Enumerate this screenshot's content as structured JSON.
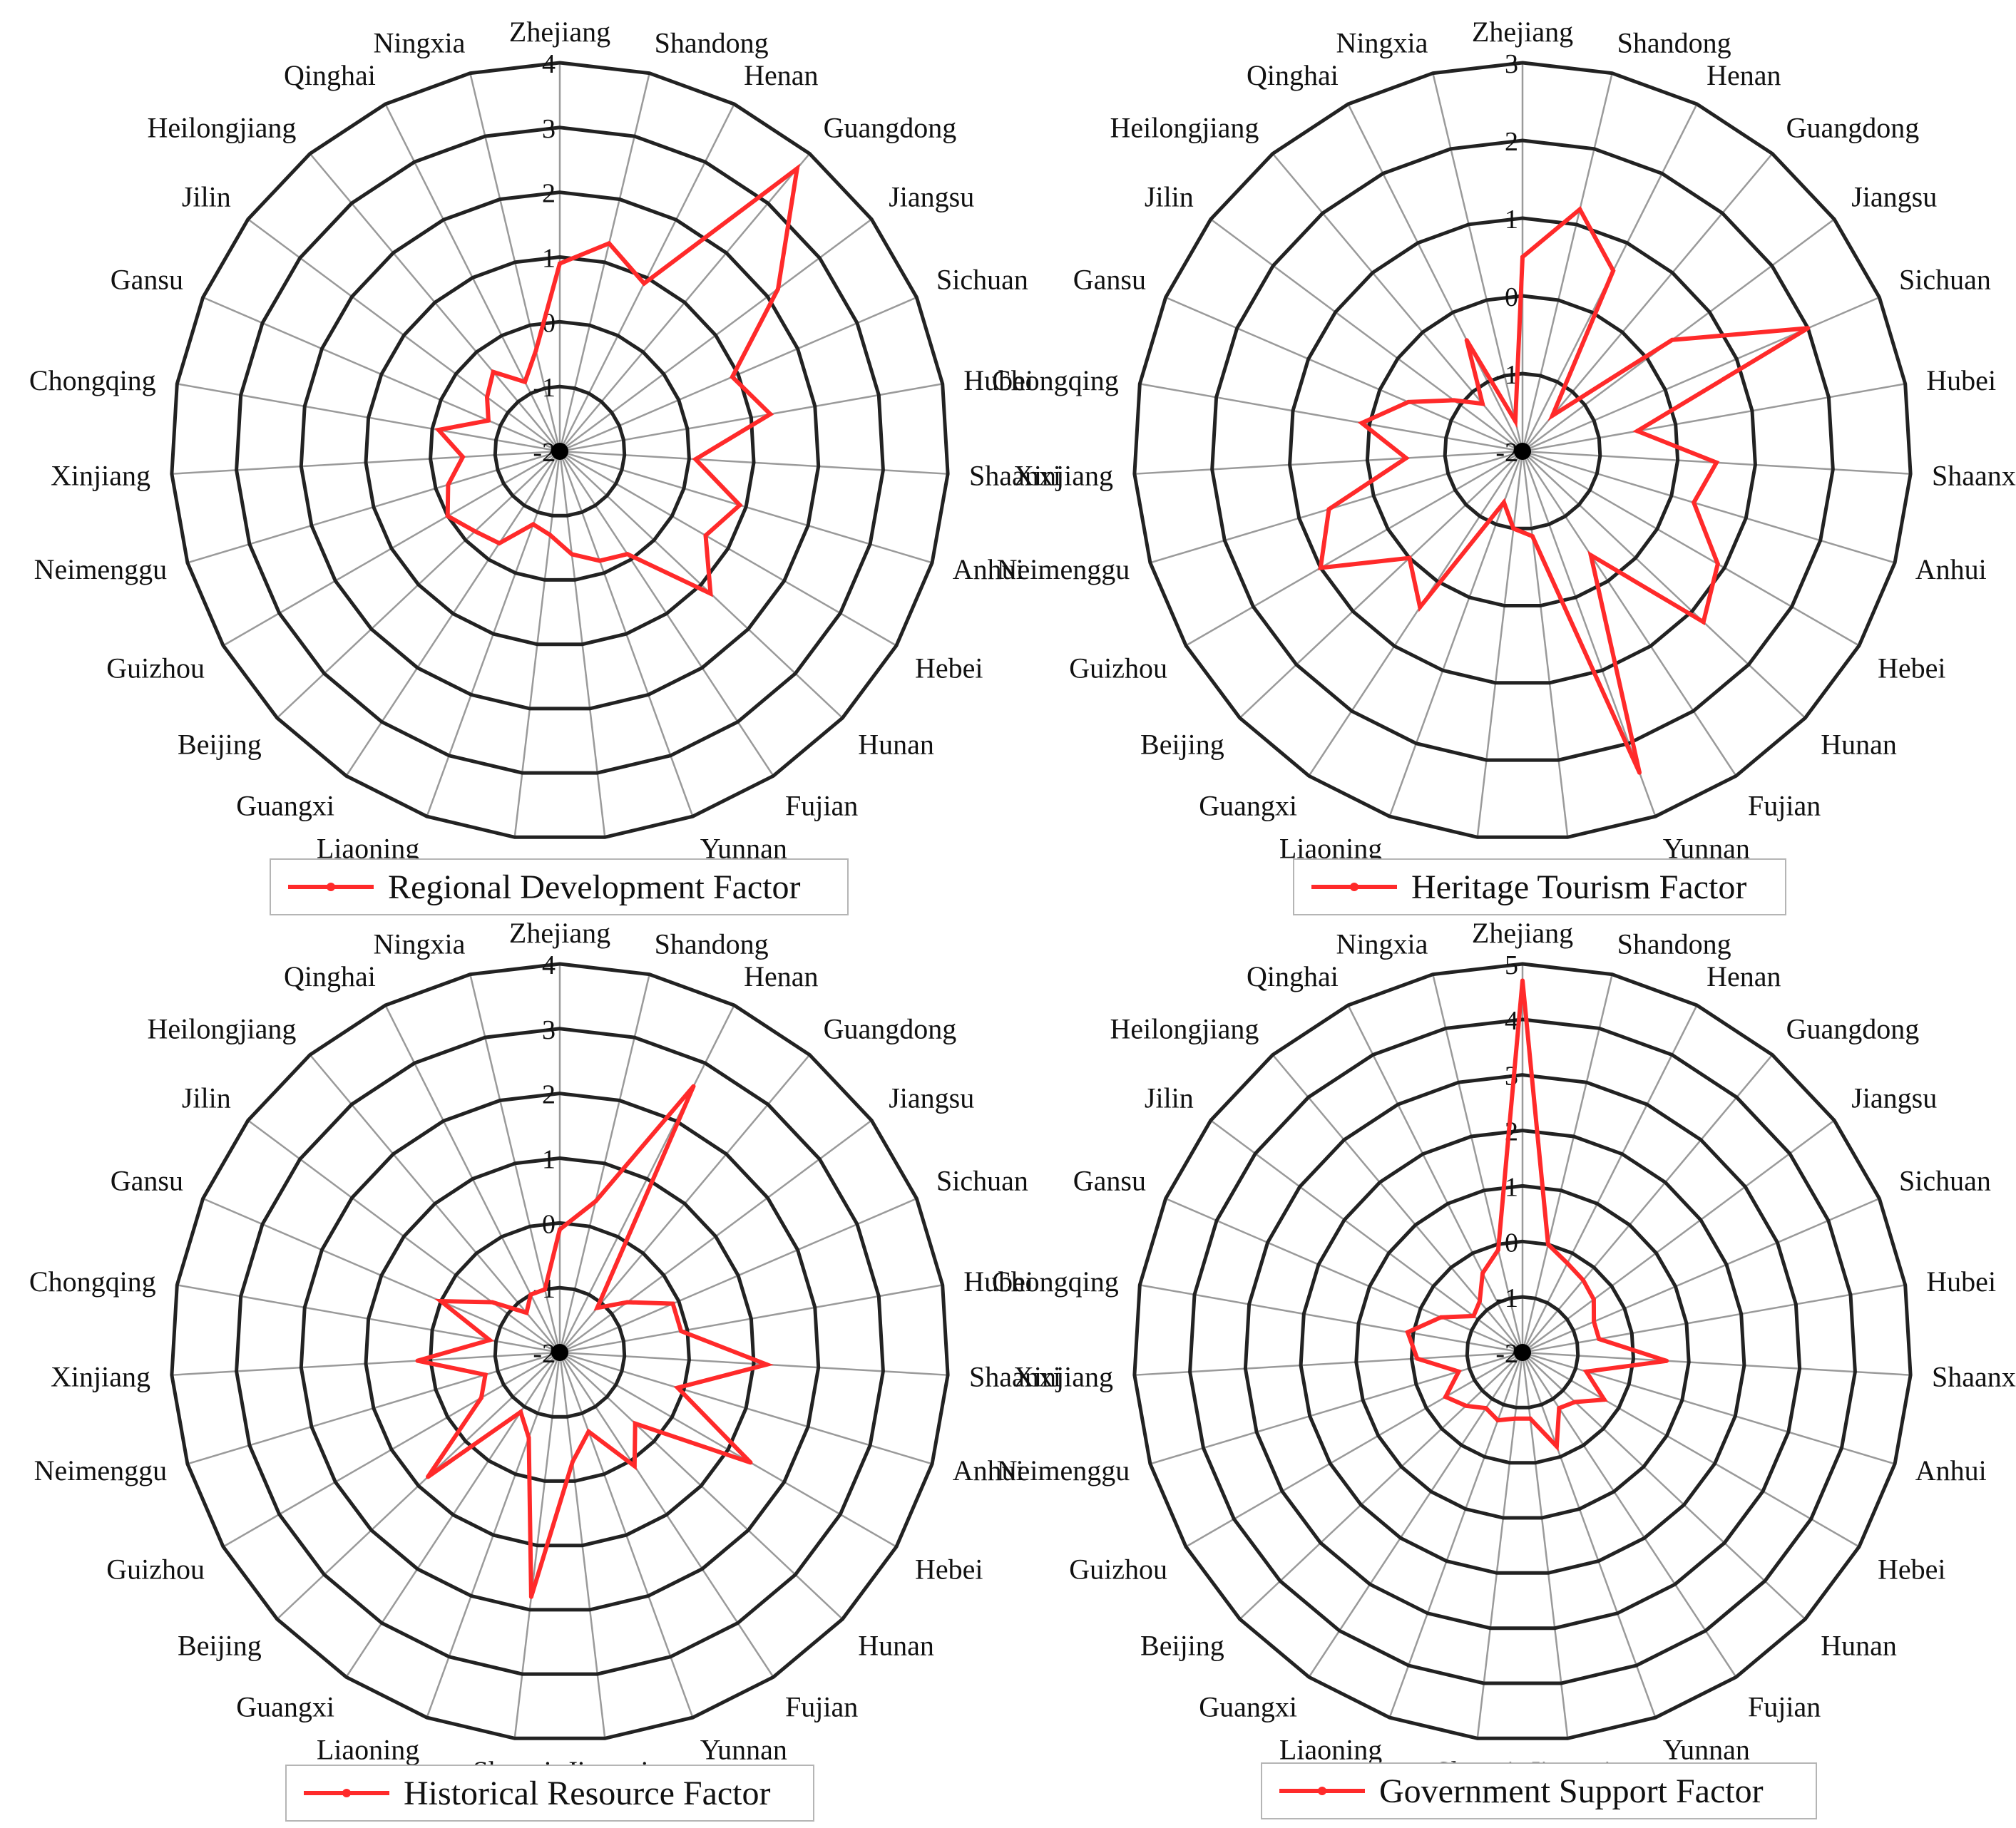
{
  "categories": [
    "Zhejiang",
    "Shandong",
    "Henan",
    "Guangdong",
    "Jiangsu",
    "Sichuan",
    "Hubei",
    "Shaanxi",
    "Anhui",
    "Hebei",
    "Hunan",
    "Fujian",
    "Yunnan",
    "Jiangxi",
    "Shanxi",
    "Liaoning",
    "Guangxi",
    "Beijing",
    "Guizhou",
    "Neimenggu",
    "Xinjiang",
    "Chongqing",
    "Gansu",
    "Jilin",
    "Heilongjiang",
    "Qinghai",
    "Ningxia"
  ],
  "colors": {
    "series": "#ff2a2a",
    "grid": "#222222",
    "spokes": "#9a9a9a"
  },
  "chart_data": [
    {
      "type": "radar",
      "title": "Regional Development Factor",
      "legend": "Regional Development Factor",
      "rlim": [
        -2,
        4
      ],
      "ticks": [
        "-2",
        "-1",
        "0",
        "1",
        "2",
        "3",
        "4"
      ],
      "values": [
        0.9,
        1.3,
        0.9,
        3.7,
        2.2,
        0.9,
        1.3,
        0.1,
        0.9,
        0.6,
        1.2,
        -0.1,
        -0.2,
        -0.4,
        -0.7,
        -0.8,
        -0.3,
        -0.2,
        0.0,
        -0.2,
        -0.5,
        -0.1,
        -0.8,
        -0.6,
        -0.4,
        -0.8,
        -0.4
      ]
    },
    {
      "type": "radar",
      "title": "Heritage Tourism Factor",
      "legend": "Heritage Tourism Factor",
      "rlim": [
        -2,
        3
      ],
      "ticks": [
        "-2",
        "-1",
        "0",
        "1",
        "2",
        "3"
      ],
      "values": [
        0.5,
        1.2,
        0.6,
        -1.4,
        0.4,
        2.0,
        -0.5,
        0.5,
        0.3,
        0.9,
        1.2,
        -0.4,
        2.4,
        -0.9,
        -1.0,
        -1.3,
        0.4,
        0.0,
        1.0,
        0.6,
        -0.5,
        0.1,
        -0.4,
        -0.9,
        -1.2,
        -0.4,
        -1.6
      ]
    },
    {
      "type": "radar",
      "title": "Historical Resource Factor",
      "legend": "Historical Resource Factor",
      "rlim": [
        -2,
        4
      ],
      "ticks": [
        "-2",
        "-1",
        "0",
        "1",
        "2",
        "3",
        "4"
      ],
      "values": [
        -0.1,
        0.4,
        2.6,
        -1.1,
        -0.7,
        -0.1,
        -0.1,
        1.2,
        -0.1,
        1.4,
        -0.4,
        0.1,
        -0.7,
        -0.3,
        1.8,
        -0.6,
        -0.9,
        0.8,
        -0.6,
        -0.8,
        0.2,
        -0.9,
        0.0,
        -0.7,
        -1.2,
        -1.0,
        -1.0
      ]
    },
    {
      "type": "radar",
      "title": "Government Support Factor",
      "legend": "Government Support Factor",
      "rlim": [
        -2,
        5
      ],
      "ticks": [
        "-2",
        "-1",
        "0",
        "1",
        "2",
        "3",
        "4",
        "5"
      ],
      "values": [
        4.7,
        0.0,
        -0.2,
        -0.3,
        -0.4,
        -0.6,
        -0.6,
        0.6,
        -0.8,
        -0.3,
        -0.7,
        -0.8,
        -0.2,
        -0.8,
        -0.8,
        -0.7,
        -0.8,
        -0.6,
        -0.4,
        -0.8,
        -0.1,
        0.1,
        -0.4,
        -0.9,
        -0.8,
        -0.4,
        -0.1
      ]
    }
  ]
}
